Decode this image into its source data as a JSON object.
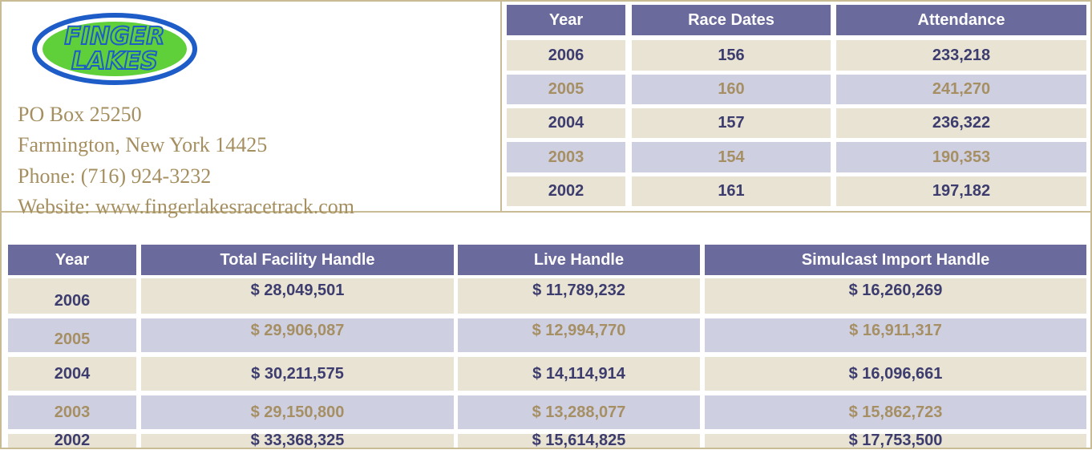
{
  "logo": {
    "line1": "FINGER",
    "line2": "LAKES"
  },
  "address": [
    "PO Box 25250",
    "Farmington, New York 14425",
    "Phone: (716) 924-3232",
    "Website: www.fingerlakesracetrack.com"
  ],
  "top_table": {
    "columns": [
      "Year",
      "Race Dates",
      "Attendance"
    ],
    "rows": [
      [
        "2006",
        "156",
        "233,218"
      ],
      [
        "2005",
        "160",
        "241,270"
      ],
      [
        "2004",
        "157",
        "236,322"
      ],
      [
        "2003",
        "154",
        "190,353"
      ],
      [
        "2002",
        "161",
        "197,182"
      ]
    ]
  },
  "bottom_table": {
    "columns": [
      "Year",
      "Total Facility Handle",
      "Live Handle",
      "Simulcast Import Handle"
    ],
    "rows": [
      [
        "2006",
        "$ 28,049,501",
        "$ 11,789,232",
        "$ 16,260,269"
      ],
      [
        "2005",
        "$ 29,906,087",
        "$ 12,994,770",
        "$ 16,911,317"
      ],
      [
        "2004",
        "$ 30,211,575",
        "$ 14,114,914",
        "$ 16,096,661"
      ],
      [
        "2003",
        "$ 29,150,800",
        "$ 13,288,077",
        "$ 15,862,723"
      ],
      [
        "2002",
        "$ 33,368,325",
        "$ 15,614,825",
        "$ 17,753,500"
      ]
    ]
  }
}
